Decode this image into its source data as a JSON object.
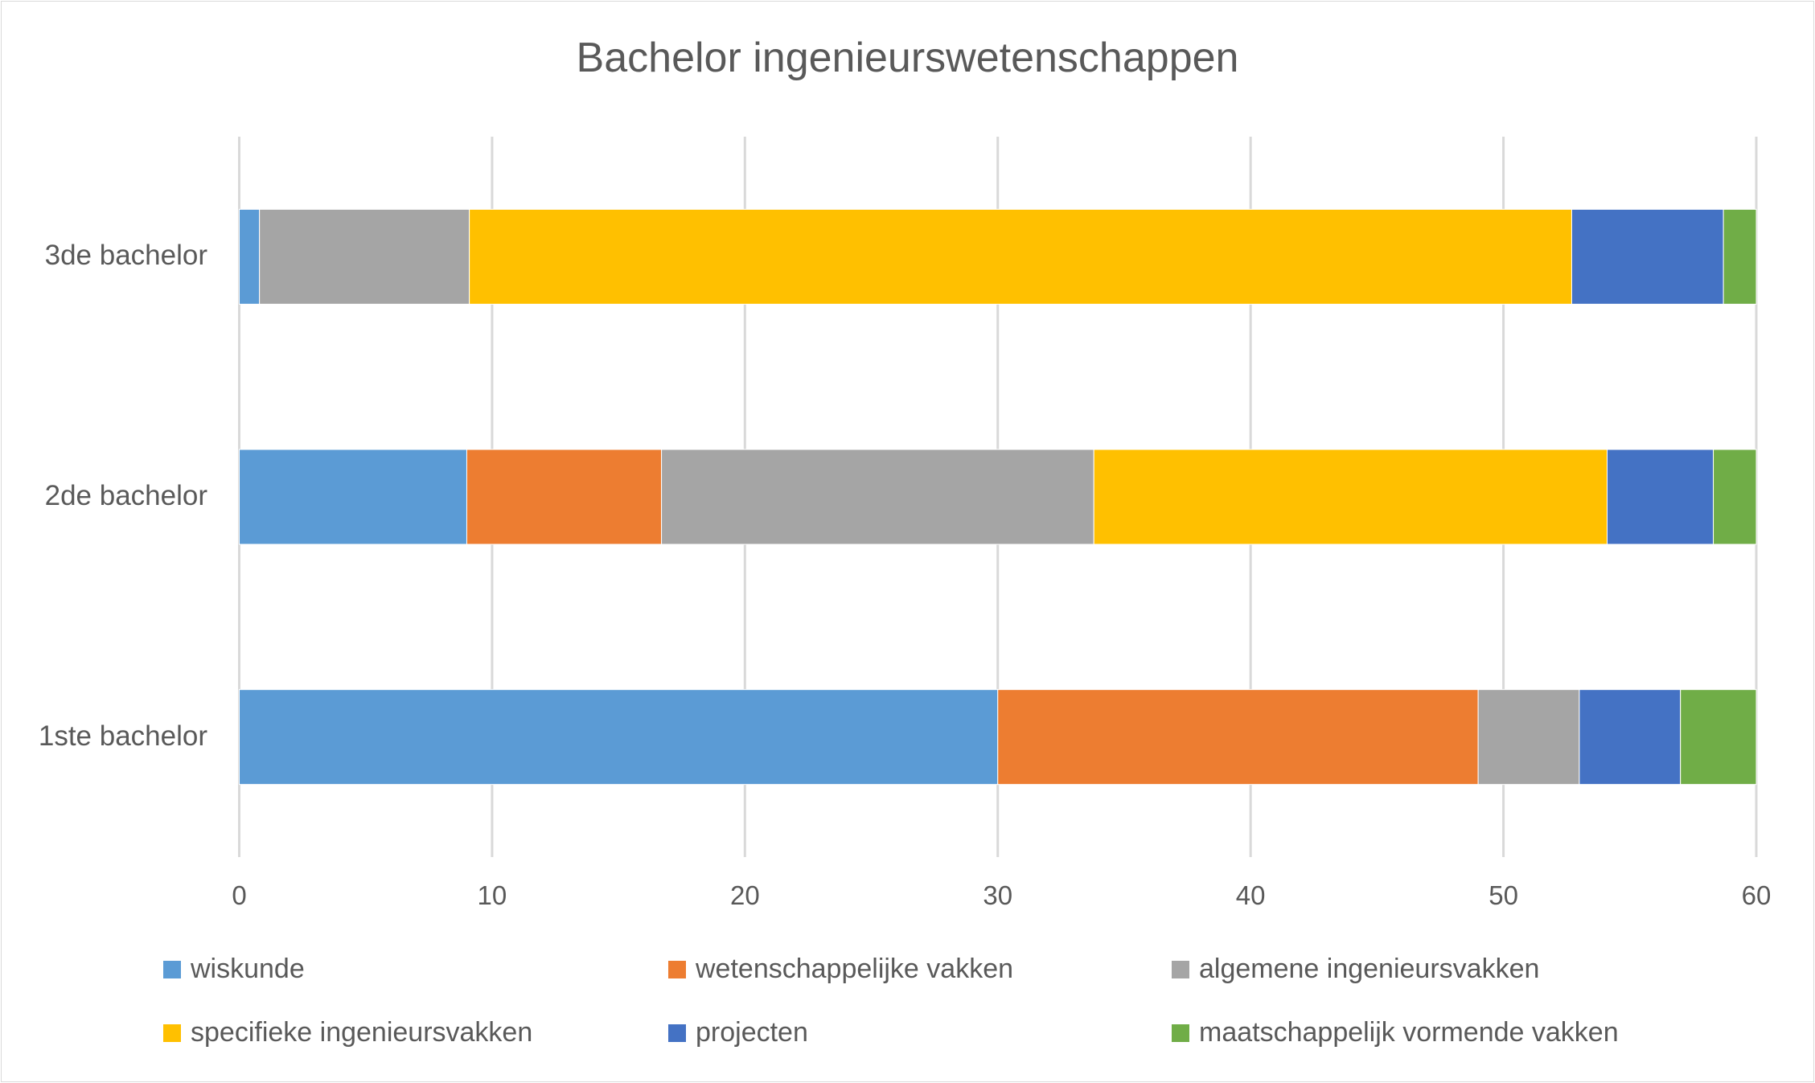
{
  "chart_data": {
    "type": "bar",
    "orientation": "horizontal",
    "stacked": true,
    "title": "Bachelor ingenieurswetenschappen",
    "categories": [
      "3de bachelor",
      "2de bachelor",
      "1ste bachelor"
    ],
    "xlim": [
      0,
      60
    ],
    "xticks": [
      "0",
      "10",
      "20",
      "30",
      "40",
      "50",
      "60"
    ],
    "grid": true,
    "legend_position": "bottom",
    "series": [
      {
        "name": "wiskunde",
        "color": "#5B9BD5",
        "values": [
          0.8,
          9,
          30
        ]
      },
      {
        "name": "wetenschappelijke vakken",
        "color": "#ED7D31",
        "values": [
          0,
          7.7,
          19
        ]
      },
      {
        "name": "algemene ingenieursvakken",
        "color": "#A5A5A5",
        "values": [
          8.3,
          17.1,
          4
        ]
      },
      {
        "name": "specifieke ingenieursvakken",
        "color": "#FFC000",
        "values": [
          43.6,
          20.3,
          0
        ]
      },
      {
        "name": "projecten",
        "color": "#4472C4",
        "values": [
          6,
          4.2,
          4
        ]
      },
      {
        "name": "maatschappelijk vormende vakken",
        "color": "#70AD47",
        "values": [
          1.3,
          1.7,
          3
        ]
      }
    ]
  }
}
